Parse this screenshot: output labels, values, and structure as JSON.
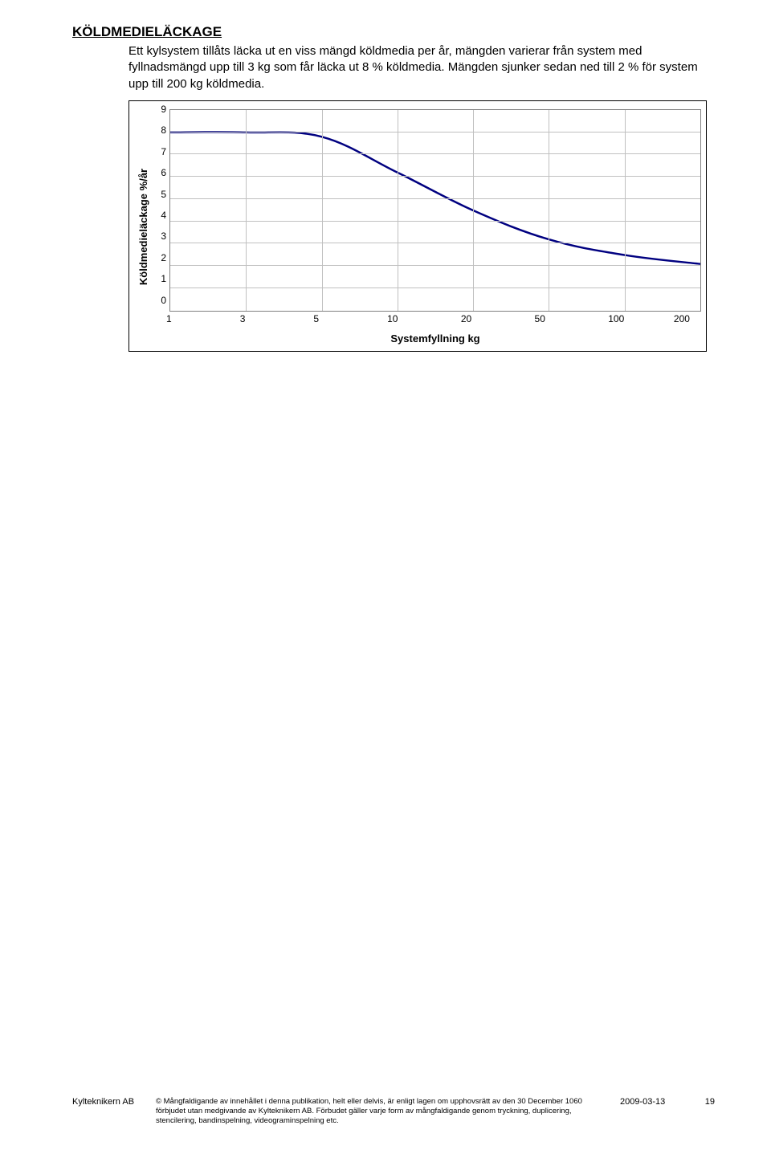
{
  "section": {
    "title": "KÖLDMEDIELÄCKAGE",
    "body": "Ett kylsystem tillåts läcka ut en viss mängd köldmedia per år, mängden varierar från system med fyllnadsmängd upp till 3 kg som får läcka ut 8 % köldmedia. Mängden sjunker sedan ned till 2 % för system upp till 200 kg köldmedia."
  },
  "chart": {
    "type": "line",
    "ylabel": "Köldmedieläckage %/år",
    "xlabel": "Systemfyllning kg",
    "ylim": [
      0,
      9
    ],
    "ytick_step": 1,
    "x_categories": [
      "1",
      "3",
      "5",
      "10",
      "20",
      "50",
      "100",
      "200"
    ],
    "y_values": [
      8.0,
      8.0,
      7.8,
      6.2,
      4.5,
      3.2,
      2.5,
      2.1
    ],
    "line_color": "#000080",
    "line_width": 2.5,
    "grid_color": "#c0c0c0",
    "border_color": "#808080",
    "background_color": "#ffffff",
    "label_fontsize": 13,
    "tick_fontsize": 12
  },
  "footer": {
    "company": "Kylteknikern AB",
    "text": "© Mångfaldigande av innehållet i denna publikation, helt eller delvis, är enligt lagen om upphovsrätt av den 30 December 1060 förbjudet utan medgivande av Kylteknikern AB. Förbudet gäller varje form av mångfaldigande genom tryckning, duplicering, stencilering, bandinspelning, videograminspelning etc.",
    "date": "2009-03-13",
    "page": "19"
  }
}
